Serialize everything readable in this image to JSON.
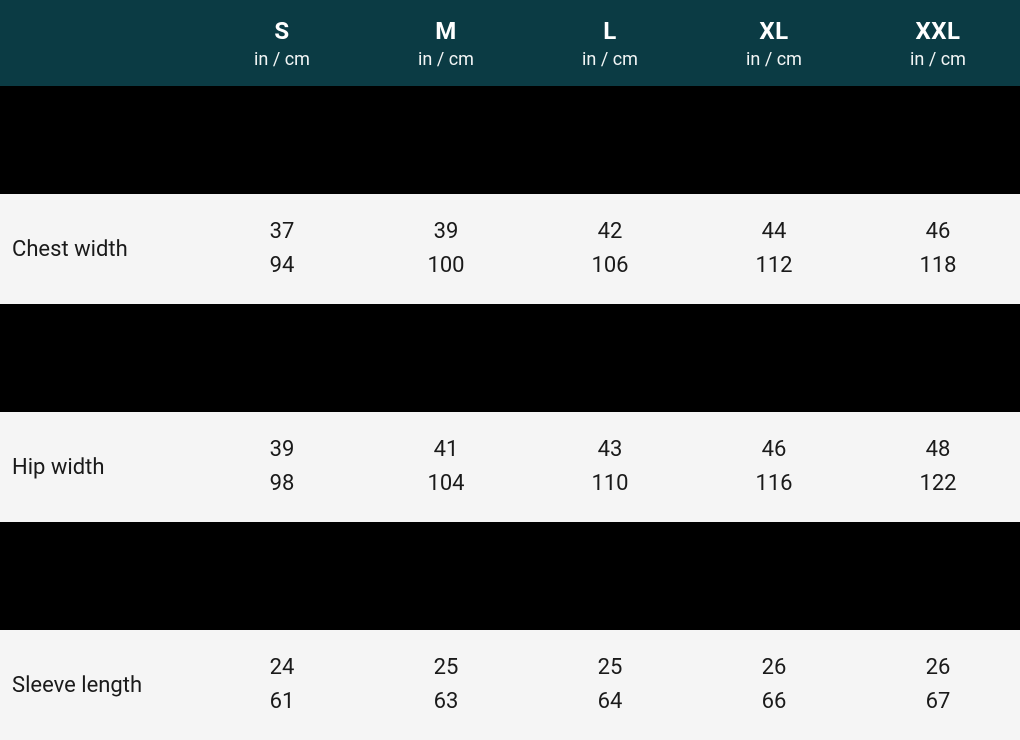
{
  "table": {
    "type": "table",
    "header_bg": "#0b3b44",
    "header_text_color": "#ffffff",
    "spacer_bg": "#000000",
    "data_row_bg": "#f5f5f5",
    "data_text_color": "#1a1a1a",
    "unit_label": "in / cm",
    "sizes": [
      "S",
      "M",
      "L",
      "XL",
      "XXL"
    ],
    "rows": [
      {
        "label": "Chest width",
        "values": [
          {
            "in": "37",
            "cm": "94"
          },
          {
            "in": "39",
            "cm": "100"
          },
          {
            "in": "42",
            "cm": "106"
          },
          {
            "in": "44",
            "cm": "112"
          },
          {
            "in": "46",
            "cm": "118"
          }
        ]
      },
      {
        "label": "Hip width",
        "values": [
          {
            "in": "39",
            "cm": "98"
          },
          {
            "in": "41",
            "cm": "104"
          },
          {
            "in": "43",
            "cm": "110"
          },
          {
            "in": "46",
            "cm": "116"
          },
          {
            "in": "48",
            "cm": "122"
          }
        ]
      },
      {
        "label": "Sleeve length",
        "values": [
          {
            "in": "24",
            "cm": "61"
          },
          {
            "in": "25",
            "cm": "63"
          },
          {
            "in": "25",
            "cm": "64"
          },
          {
            "in": "26",
            "cm": "66"
          },
          {
            "in": "26",
            "cm": "67"
          }
        ]
      }
    ]
  }
}
